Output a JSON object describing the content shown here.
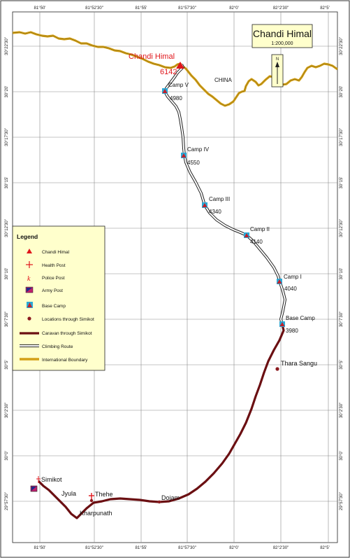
{
  "title": {
    "name": "Chandi Himal",
    "scale": "1:200,000"
  },
  "country_label": "CHINA",
  "peak": {
    "name": "Chandi Himal",
    "elevation": "6142"
  },
  "north_arrow": {
    "letter": "N"
  },
  "camps": [
    {
      "name": "Camp V",
      "elevation": "4980"
    },
    {
      "name": "Camp IV",
      "elevation": "4550"
    },
    {
      "name": "Camp III",
      "elevation": "4340"
    },
    {
      "name": "Camp II",
      "elevation": "4140"
    },
    {
      "name": "Camp I",
      "elevation": "4040"
    },
    {
      "name": "Base Camp",
      "elevation": "3980"
    }
  ],
  "places": [
    {
      "name": "Thara Sangu"
    },
    {
      "name": "Dojam"
    },
    {
      "name": "Thehe"
    },
    {
      "name": "Simikot"
    },
    {
      "name": "Jyula"
    },
    {
      "name": "Kharpunath"
    }
  ],
  "longitude_ticks": [
    "81°50'",
    "81°52'30\"",
    "81°55'",
    "81°57'30\"",
    "82°0'",
    "82°2'30\"",
    "82°5'"
  ],
  "latitude_ticks": [
    "30°22'30\"",
    "30°20'",
    "30°17'30\"",
    "30°15'",
    "30°12'30\"",
    "30°10'",
    "30°7'30\"",
    "30°5'",
    "30°2'30\"",
    "30°0'",
    "29°57'30\""
  ],
  "legend": {
    "title": "Legend",
    "items": [
      {
        "label": "Chandi Himal",
        "symbol": "red-triangle"
      },
      {
        "label": "Health Post",
        "symbol": "red-cross"
      },
      {
        "label": "Police Post",
        "symbol": "red-k"
      },
      {
        "label": "Army Post",
        "symbol": "flag-square"
      },
      {
        "label": "Base Camp",
        "symbol": "blue-square-triangle"
      },
      {
        "label": "Locations through Simikot",
        "symbol": "dark-red-dot"
      },
      {
        "label": "Caravan through Simikot",
        "symbol": "dark-red-line"
      },
      {
        "label": "Climbing Route",
        "symbol": "white-double-line"
      },
      {
        "label": "International Boundary",
        "symbol": "gold-line"
      }
    ]
  },
  "colors": {
    "boundary": "#d4a017",
    "caravan": "#6b0f12",
    "climbing": "#ffffff",
    "peak": "#e0161b",
    "camp_fill": "#2aa9d6",
    "legend_bg": "#ffffcc",
    "title_bg": "#ffffcc"
  }
}
